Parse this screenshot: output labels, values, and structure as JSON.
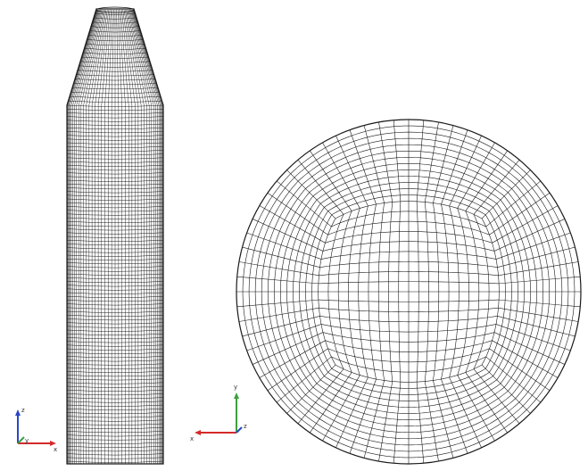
{
  "panels": [
    {
      "id": "side-view",
      "description_visible": false
    },
    {
      "id": "top-view",
      "description_visible": false
    }
  ],
  "triads": [
    {
      "id": "left-triad",
      "axis_labels": [
        "z",
        "x",
        "y"
      ]
    },
    {
      "id": "right-triad",
      "axis_labels": [
        "y",
        "x",
        "z"
      ]
    }
  ],
  "colors": {
    "mesh": "#1a1a1a",
    "background": "#ffffff",
    "axis_x": "#d42a2a",
    "axis_y": "#3ca03c",
    "axis_z": "#2a46c8"
  }
}
